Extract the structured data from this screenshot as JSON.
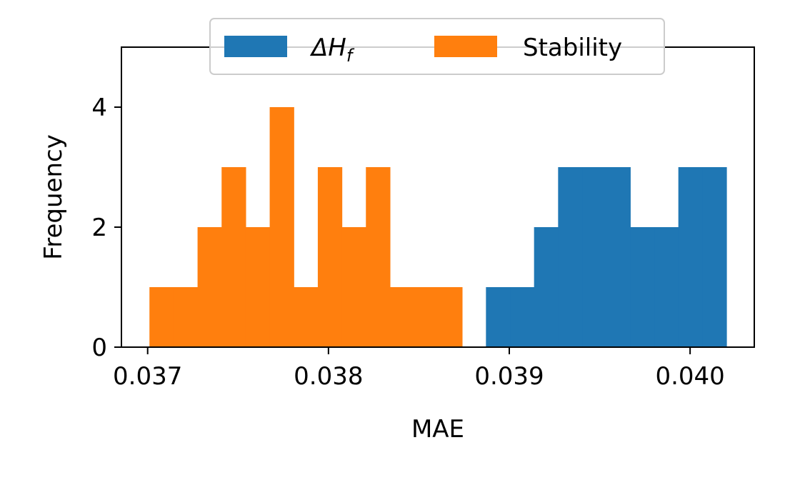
{
  "chart_data": {
    "type": "bar",
    "xlabel": "MAE",
    "ylabel": "Frequency",
    "xlim": [
      0.036855,
      0.040355
    ],
    "ylim": [
      0,
      5
    ],
    "xticks": [
      0.037,
      0.038,
      0.039,
      0.04
    ],
    "xtick_labels": [
      "0.037",
      "0.038",
      "0.039",
      "0.040"
    ],
    "yticks": [
      0,
      2,
      4
    ],
    "ytick_labels": [
      "0",
      "2",
      "4"
    ],
    "grid": false,
    "legend": {
      "placement": "top-center",
      "columns": 2
    },
    "series": [
      {
        "name": "Stability",
        "legend_label": "Stability",
        "color": "#ff7f0e",
        "bin_edges": [
          0.03701,
          0.037143,
          0.037276,
          0.037409,
          0.037542,
          0.037675,
          0.037808,
          0.037941,
          0.038074,
          0.038207,
          0.03834,
          0.038473,
          0.038606,
          0.038739
        ],
        "counts": [
          1,
          1,
          2,
          3,
          2,
          4,
          1,
          3,
          2,
          3,
          1,
          1,
          1
        ]
      },
      {
        "name": "ΔHf",
        "legend_main": "ΔH",
        "legend_sub": "f",
        "color": "#1f77b4",
        "bin_edges": [
          0.038871,
          0.039004,
          0.039137,
          0.03927,
          0.039403,
          0.039536,
          0.039669,
          0.039802,
          0.039935,
          0.040068,
          0.040201
        ],
        "counts": [
          1,
          1,
          2,
          3,
          3,
          3,
          2,
          2,
          3,
          3
        ]
      }
    ]
  }
}
